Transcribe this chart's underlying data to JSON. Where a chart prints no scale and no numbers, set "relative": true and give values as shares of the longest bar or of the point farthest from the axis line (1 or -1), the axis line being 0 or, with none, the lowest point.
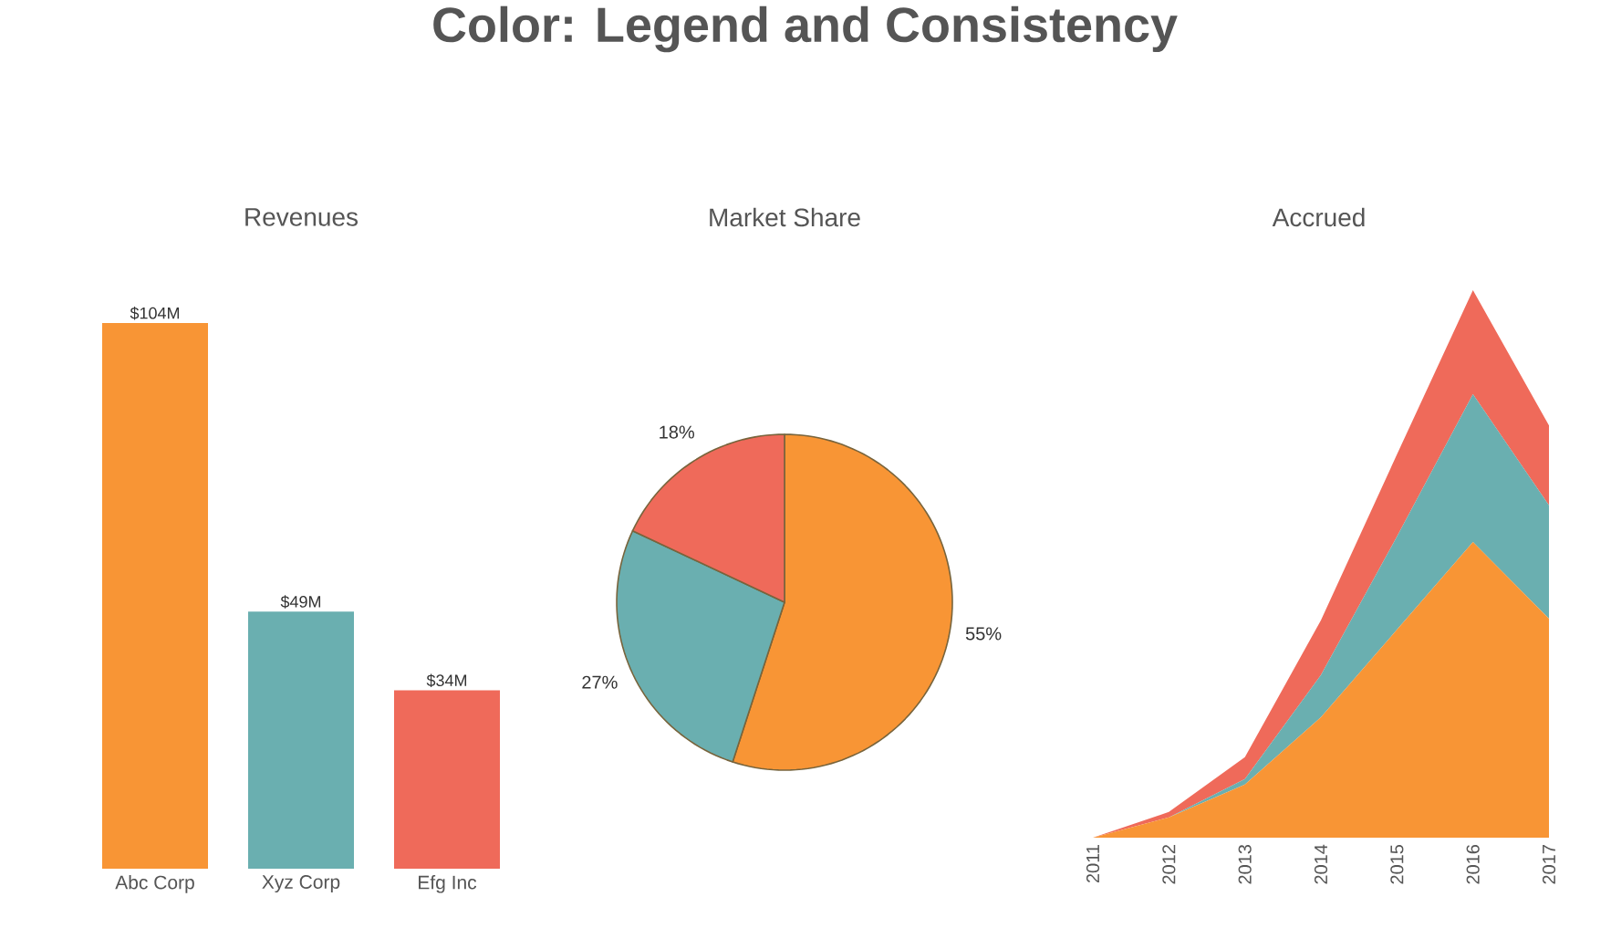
{
  "chart_data": [
    {
      "type": "other",
      "title": "Color: Legend and Consistency"
    },
    {
      "type": "bar",
      "title": "Revenues",
      "categories": [
        "Abc Corp",
        "Xyz Corp",
        "Efg Inc"
      ],
      "values": [
        104,
        49,
        34
      ],
      "value_labels": [
        "$104M",
        "$49M",
        "$34M"
      ],
      "colors": [
        "#f89535",
        "#6aafb0",
        "#ef6a5a"
      ]
    },
    {
      "type": "pie",
      "title": "Market Share",
      "categories": [
        null,
        null,
        null
      ],
      "values": [
        55,
        27,
        18
      ],
      "value_labels": [
        "55%",
        "27%",
        "18%"
      ],
      "colors": [
        "#f89535",
        "#6aafb0",
        "#ef6a5a"
      ]
    },
    {
      "type": "area",
      "title": "Accrued",
      "relative": true,
      "stacked": true,
      "categories": [
        "2011",
        "2012",
        "2013",
        "2014",
        "2015",
        "2016",
        "2017"
      ],
      "series": [
        {
          "color": "#f89535",
          "values": [
            0,
            0.037,
            0.097,
            0.22,
            0.38,
            0.54,
            0.4
          ]
        },
        {
          "color": "#6aafb0",
          "values": [
            0,
            0,
            0.01,
            0.077,
            0.17,
            0.27,
            0.207
          ]
        },
        {
          "color": "#ef6a5a",
          "values": [
            0,
            0.01,
            0.04,
            0.1,
            0.15,
            0.19,
            0.146
          ]
        }
      ]
    }
  ]
}
